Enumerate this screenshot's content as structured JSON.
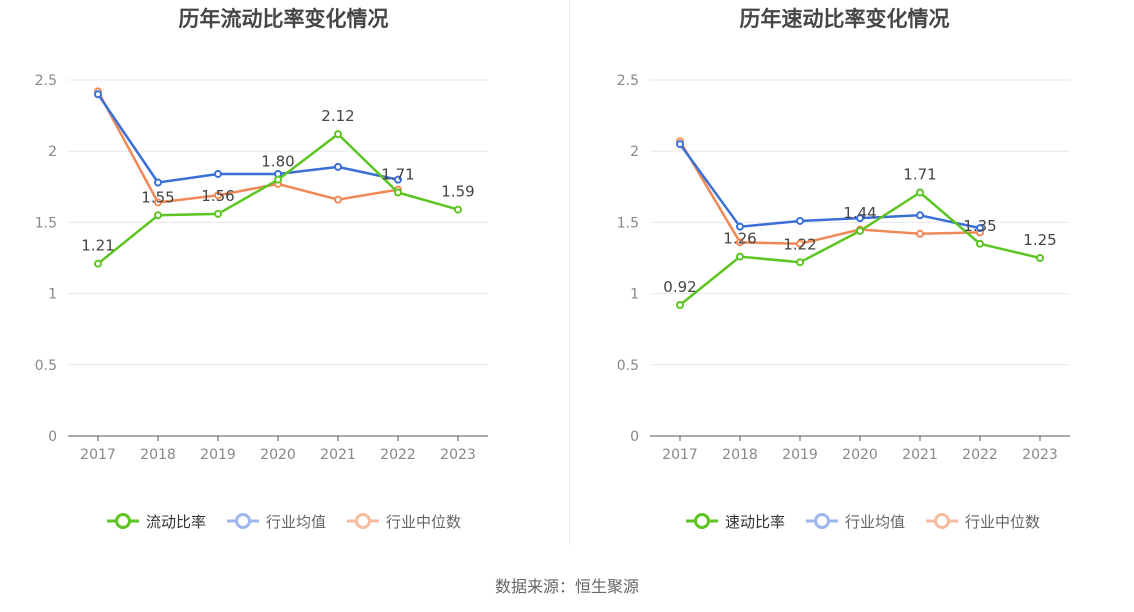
{
  "footer": {
    "source": "数据来源：恒生聚源"
  },
  "chart_data": [
    {
      "type": "line",
      "title": "历年流动比率变化情况",
      "x": [
        "2017",
        "2018",
        "2019",
        "2020",
        "2021",
        "2022",
        "2023"
      ],
      "ylim": [
        0,
        2.5
      ],
      "yticks": [
        "0",
        "0.5",
        "1",
        "1.5",
        "2",
        "2.5"
      ],
      "grid": true,
      "legend_position": "bottom",
      "series": [
        {
          "name": "流动比率",
          "color": "#5cc521",
          "values": [
            1.21,
            1.55,
            1.56,
            1.8,
            2.12,
            1.71,
            1.59
          ],
          "labels": [
            "1.21",
            "1.55",
            "1.56",
            "1.80",
            "2.12",
            "1.71",
            "1.59"
          ]
        },
        {
          "name": "行业均值",
          "color": "#3a6fd8",
          "values": [
            2.4,
            1.78,
            1.84,
            1.84,
            1.89,
            1.8,
            null
          ]
        },
        {
          "name": "行业中位数",
          "color": "#f08958",
          "values": [
            2.42,
            1.64,
            1.69,
            1.77,
            1.66,
            1.73,
            null
          ]
        }
      ]
    },
    {
      "type": "line",
      "title": "历年速动比率变化情况",
      "x": [
        "2017",
        "2018",
        "2019",
        "2020",
        "2021",
        "2022",
        "2023"
      ],
      "ylim": [
        0,
        2.5
      ],
      "yticks": [
        "0",
        "0.5",
        "1",
        "1.5",
        "2",
        "2.5"
      ],
      "grid": true,
      "legend_position": "bottom",
      "series": [
        {
          "name": "速动比率",
          "color": "#5cc521",
          "values": [
            0.92,
            1.26,
            1.22,
            1.44,
            1.71,
            1.35,
            1.25
          ],
          "labels": [
            "0.92",
            "1.26",
            "1.22",
            "1.44",
            "1.71",
            "1.35",
            "1.25"
          ]
        },
        {
          "name": "行业均值",
          "color": "#3a6fd8",
          "values": [
            2.05,
            1.47,
            1.51,
            1.53,
            1.55,
            1.46,
            null
          ]
        },
        {
          "name": "行业中位数",
          "color": "#f08958",
          "values": [
            2.07,
            1.36,
            1.35,
            1.45,
            1.42,
            1.43,
            null
          ]
        }
      ]
    }
  ]
}
